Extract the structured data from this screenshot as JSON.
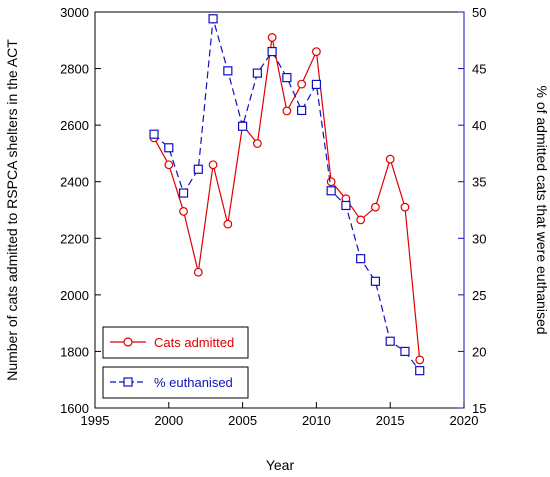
{
  "chart_data": {
    "type": "line",
    "xlabel": "Year",
    "ylabel_left": "Number of cats admitted to RSPCA shelters in the ACT",
    "ylabel_right": "% of admitted cats that were euthanised",
    "xlim": [
      1995,
      2020
    ],
    "ylim_left": [
      1600,
      3000
    ],
    "ylim_right": [
      15,
      50
    ],
    "x_ticks": [
      "1995",
      "2000",
      "2005",
      "2010",
      "2015",
      "2020"
    ],
    "y_ticks_left": [
      "1600",
      "1800",
      "2000",
      "2200",
      "2400",
      "2600",
      "2800",
      "3000"
    ],
    "y_ticks_right": [
      "15",
      "20",
      "25",
      "30",
      "35",
      "40",
      "45",
      "50"
    ],
    "grid": false,
    "legend_position": "bottom-left",
    "series": [
      {
        "name": "Cats admitted",
        "axis": "left",
        "color": "#e00000",
        "marker": "circle",
        "line": "solid",
        "x": [
          1999,
          2000,
          2001,
          2002,
          2003,
          2004,
          2005,
          2006,
          2007,
          2008,
          2009,
          2010,
          2011,
          2012,
          2013,
          2014,
          2015,
          2016,
          2017
        ],
        "values": [
          2555,
          2460,
          2295,
          2080,
          2460,
          2250,
          2600,
          2535,
          2910,
          2650,
          2745,
          2860,
          2400,
          2340,
          2265,
          2310,
          2480,
          2310,
          1770
        ]
      },
      {
        "name": "% euthanised",
        "axis": "right",
        "color": "#1010c0",
        "marker": "square",
        "line": "dashed",
        "x": [
          1999,
          2000,
          2001,
          2002,
          2003,
          2004,
          2005,
          2006,
          2007,
          2008,
          2009,
          2010,
          2011,
          2012,
          2013,
          2014,
          2015,
          2016,
          2017
        ],
        "values": [
          39.2,
          38.0,
          34.0,
          36.1,
          49.4,
          44.8,
          39.9,
          44.6,
          46.5,
          44.2,
          41.3,
          43.6,
          34.2,
          32.9,
          28.2,
          26.2,
          20.9,
          20.0,
          18.3
        ]
      }
    ]
  }
}
